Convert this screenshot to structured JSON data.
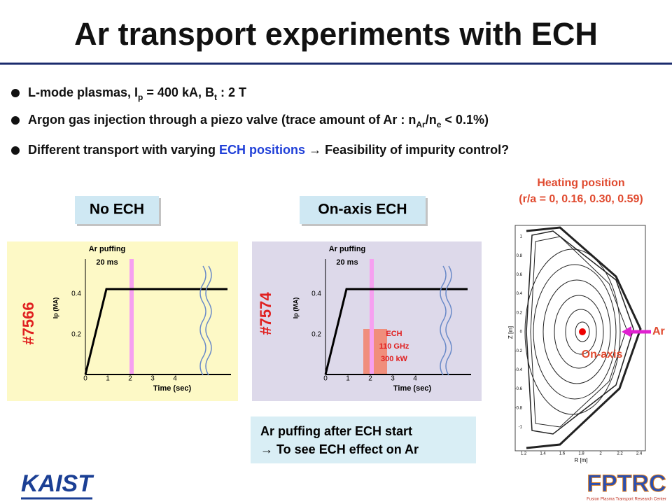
{
  "title": "Ar transport experiments with ECH",
  "bullets": [
    [
      {
        "text": "L-mode plasmas, I"
      },
      {
        "text": "p",
        "style": "sub"
      },
      {
        "text": " = 400 kA, B"
      },
      {
        "text": "t",
        "style": "sub"
      },
      {
        "text": " : 2 T"
      }
    ],
    [
      {
        "text": "Argon gas injection through a piezo valve (trace amount of Ar : n"
      },
      {
        "text": "Ar",
        "style": "sub"
      },
      {
        "text": "/n"
      },
      {
        "text": "e",
        "style": "sub"
      },
      {
        "text": " < 0.1%)"
      }
    ],
    [
      {
        "text": "Different transport with varying "
      },
      {
        "text": "ECH positions",
        "style": "blue"
      },
      {
        "text": " → Feasibility of impurity control?"
      }
    ]
  ],
  "panels": [
    {
      "label": "No ECH",
      "shot": "#7566",
      "puff": [
        "Ar puffing",
        "20 ms"
      ],
      "ylabel": "Ip (MA)",
      "xlabel": "Time (sec)",
      "xticks": [
        "0",
        "1",
        "2",
        "3",
        "4"
      ],
      "yticks": [
        "0.2",
        "0.4"
      ]
    },
    {
      "label": "On-axis ECH",
      "shot": "#7574",
      "puff": [
        "Ar puffing",
        "20 ms"
      ],
      "ylabel": "Ip (MA)",
      "xlabel": "Time (sec)",
      "xticks": [
        "0",
        "1",
        "2",
        "3",
        "4"
      ],
      "yticks": [
        "0.2",
        "0.4"
      ],
      "ech": [
        "ECH",
        "110 GHz",
        "300 kW"
      ]
    }
  ],
  "note": [
    "Ar puffing after ECH start",
    "→ To see ECH effect on Ar"
  ],
  "heating": {
    "title": "Heating position",
    "positions": "(r/a = 0, 0.16, 0.30, 0.59)"
  },
  "equilibrium": {
    "ylabel": "Z [m]",
    "xlabel": "R [m]",
    "yticks": [
      "1",
      "0.8",
      "0.6",
      "0.4",
      "0.2",
      "0",
      "-0.2",
      "-0.4",
      "-0.6",
      "-0.8",
      "-1"
    ],
    "xticks": [
      "1.2",
      "1.4",
      "1.6",
      "1.8",
      "2",
      "2.2",
      "2.4"
    ],
    "gas": "Ar",
    "marker": "On-axis"
  },
  "logos": {
    "left": "KAIST",
    "right": "FPTRC",
    "right_caption": "Fusion Plasma Transport Research Center"
  }
}
